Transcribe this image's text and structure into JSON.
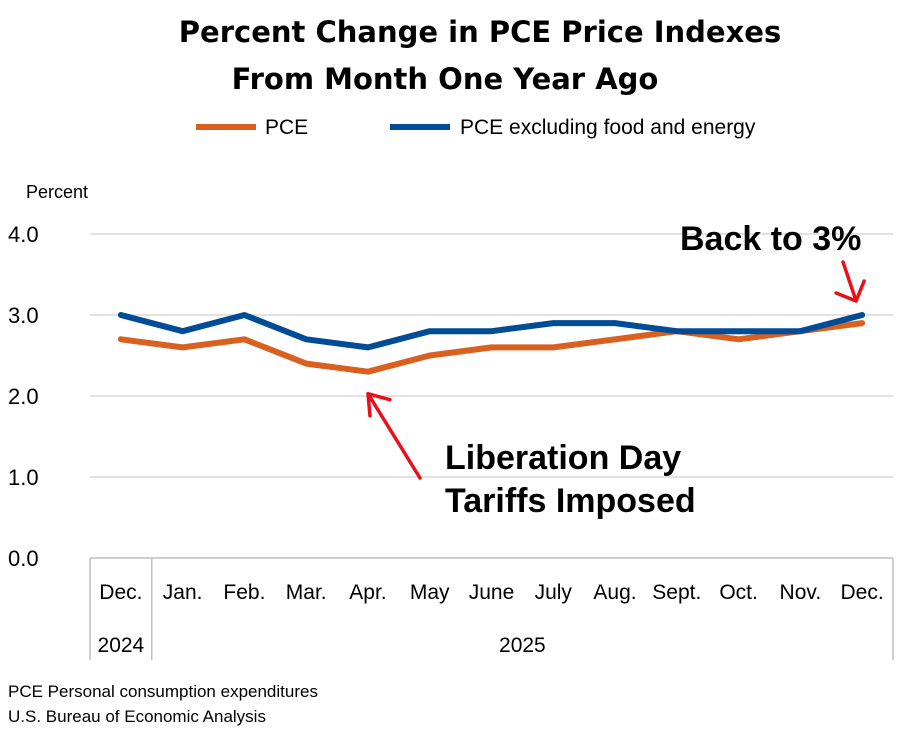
{
  "chart_data": {
    "type": "line",
    "title": [
      "Percent Change in PCE Price Indexes",
      "From Month One Year Ago"
    ],
    "ylabel": "Percent",
    "ylim": [
      0,
      4
    ],
    "yticks": [
      "0.0",
      "1.0",
      "2.0",
      "3.0",
      "4.0"
    ],
    "grid": true,
    "legend_placement": "top",
    "categories": [
      "Dec.",
      "Jan.",
      "Feb.",
      "Mar.",
      "Apr.",
      "May",
      "June",
      "July",
      "Aug.",
      "Sept.",
      "Oct.",
      "Nov.",
      "Dec."
    ],
    "year_groups": [
      {
        "label": "2024",
        "span": 1
      },
      {
        "label": "2025",
        "span": 12
      }
    ],
    "series": [
      {
        "name": "PCE",
        "color": "#D9601E",
        "values": [
          2.7,
          2.6,
          2.7,
          2.4,
          2.3,
          2.5,
          2.6,
          2.6,
          2.7,
          2.8,
          2.7,
          2.8,
          2.9
        ]
      },
      {
        "name": "PCE excluding food and energy",
        "color": "#004C97",
        "values": [
          3.0,
          2.8,
          3.0,
          2.7,
          2.6,
          2.8,
          2.8,
          2.9,
          2.9,
          2.8,
          2.8,
          2.8,
          3.0
        ]
      }
    ],
    "annotations": [
      {
        "lines": [
          "Liberation Day",
          "Tariffs Imposed"
        ],
        "points_to": "Apr."
      },
      {
        "lines": [
          "Back to 3%"
        ],
        "points_to": "Dec."
      }
    ],
    "annotation_color": "#E8101A"
  },
  "footer": [
    "PCE Personal consumption expenditures",
    "U.S. Bureau of Economic Analysis"
  ]
}
